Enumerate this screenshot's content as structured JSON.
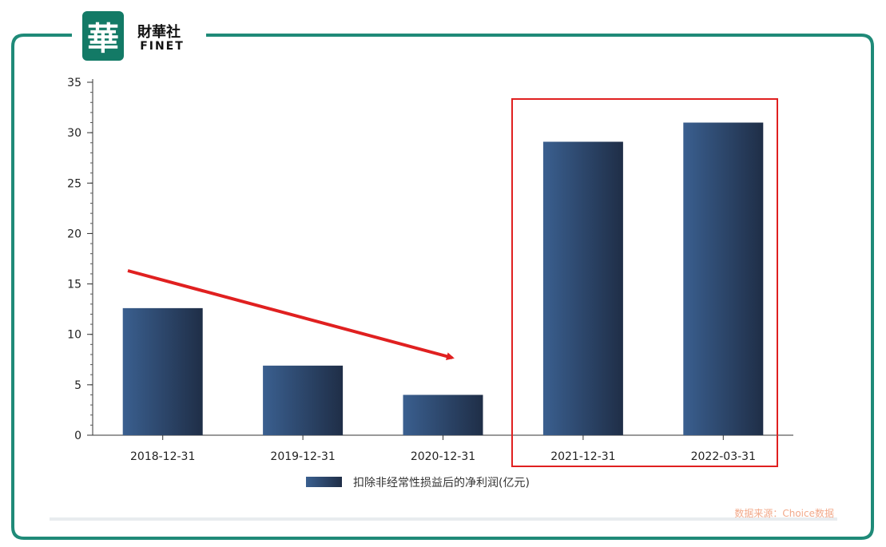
{
  "brand": {
    "logo_char": "華",
    "name_cn": "財華社",
    "name_en": "FINET",
    "color": "#137a66"
  },
  "source_note": "数据来源：Choice数据",
  "highlight_color": "#e02020",
  "frame_color": "#1f8a78",
  "chart_data": {
    "type": "bar",
    "categories": [
      "2018-12-31",
      "2019-12-31",
      "2020-12-31",
      "2021-12-31",
      "2022-03-31"
    ],
    "series": [
      {
        "name": "扣除非经常性损益后的净利润(亿元)",
        "values": [
          12.6,
          6.9,
          4.0,
          29.1,
          31.0
        ]
      }
    ],
    "ylim": [
      0,
      35
    ],
    "yticks": [
      0,
      5,
      10,
      15,
      20,
      25,
      30,
      35
    ],
    "grid": false,
    "legend": "bottom-center",
    "bar_color_start": "#3a5f8f",
    "bar_color_end": "#1f2e47",
    "annotations": [
      {
        "type": "arrow",
        "description": "declining trend from 2018-12-31 to 2020-12-31"
      },
      {
        "type": "box",
        "covers": [
          "2021-12-31",
          "2022-03-31"
        ]
      }
    ]
  }
}
